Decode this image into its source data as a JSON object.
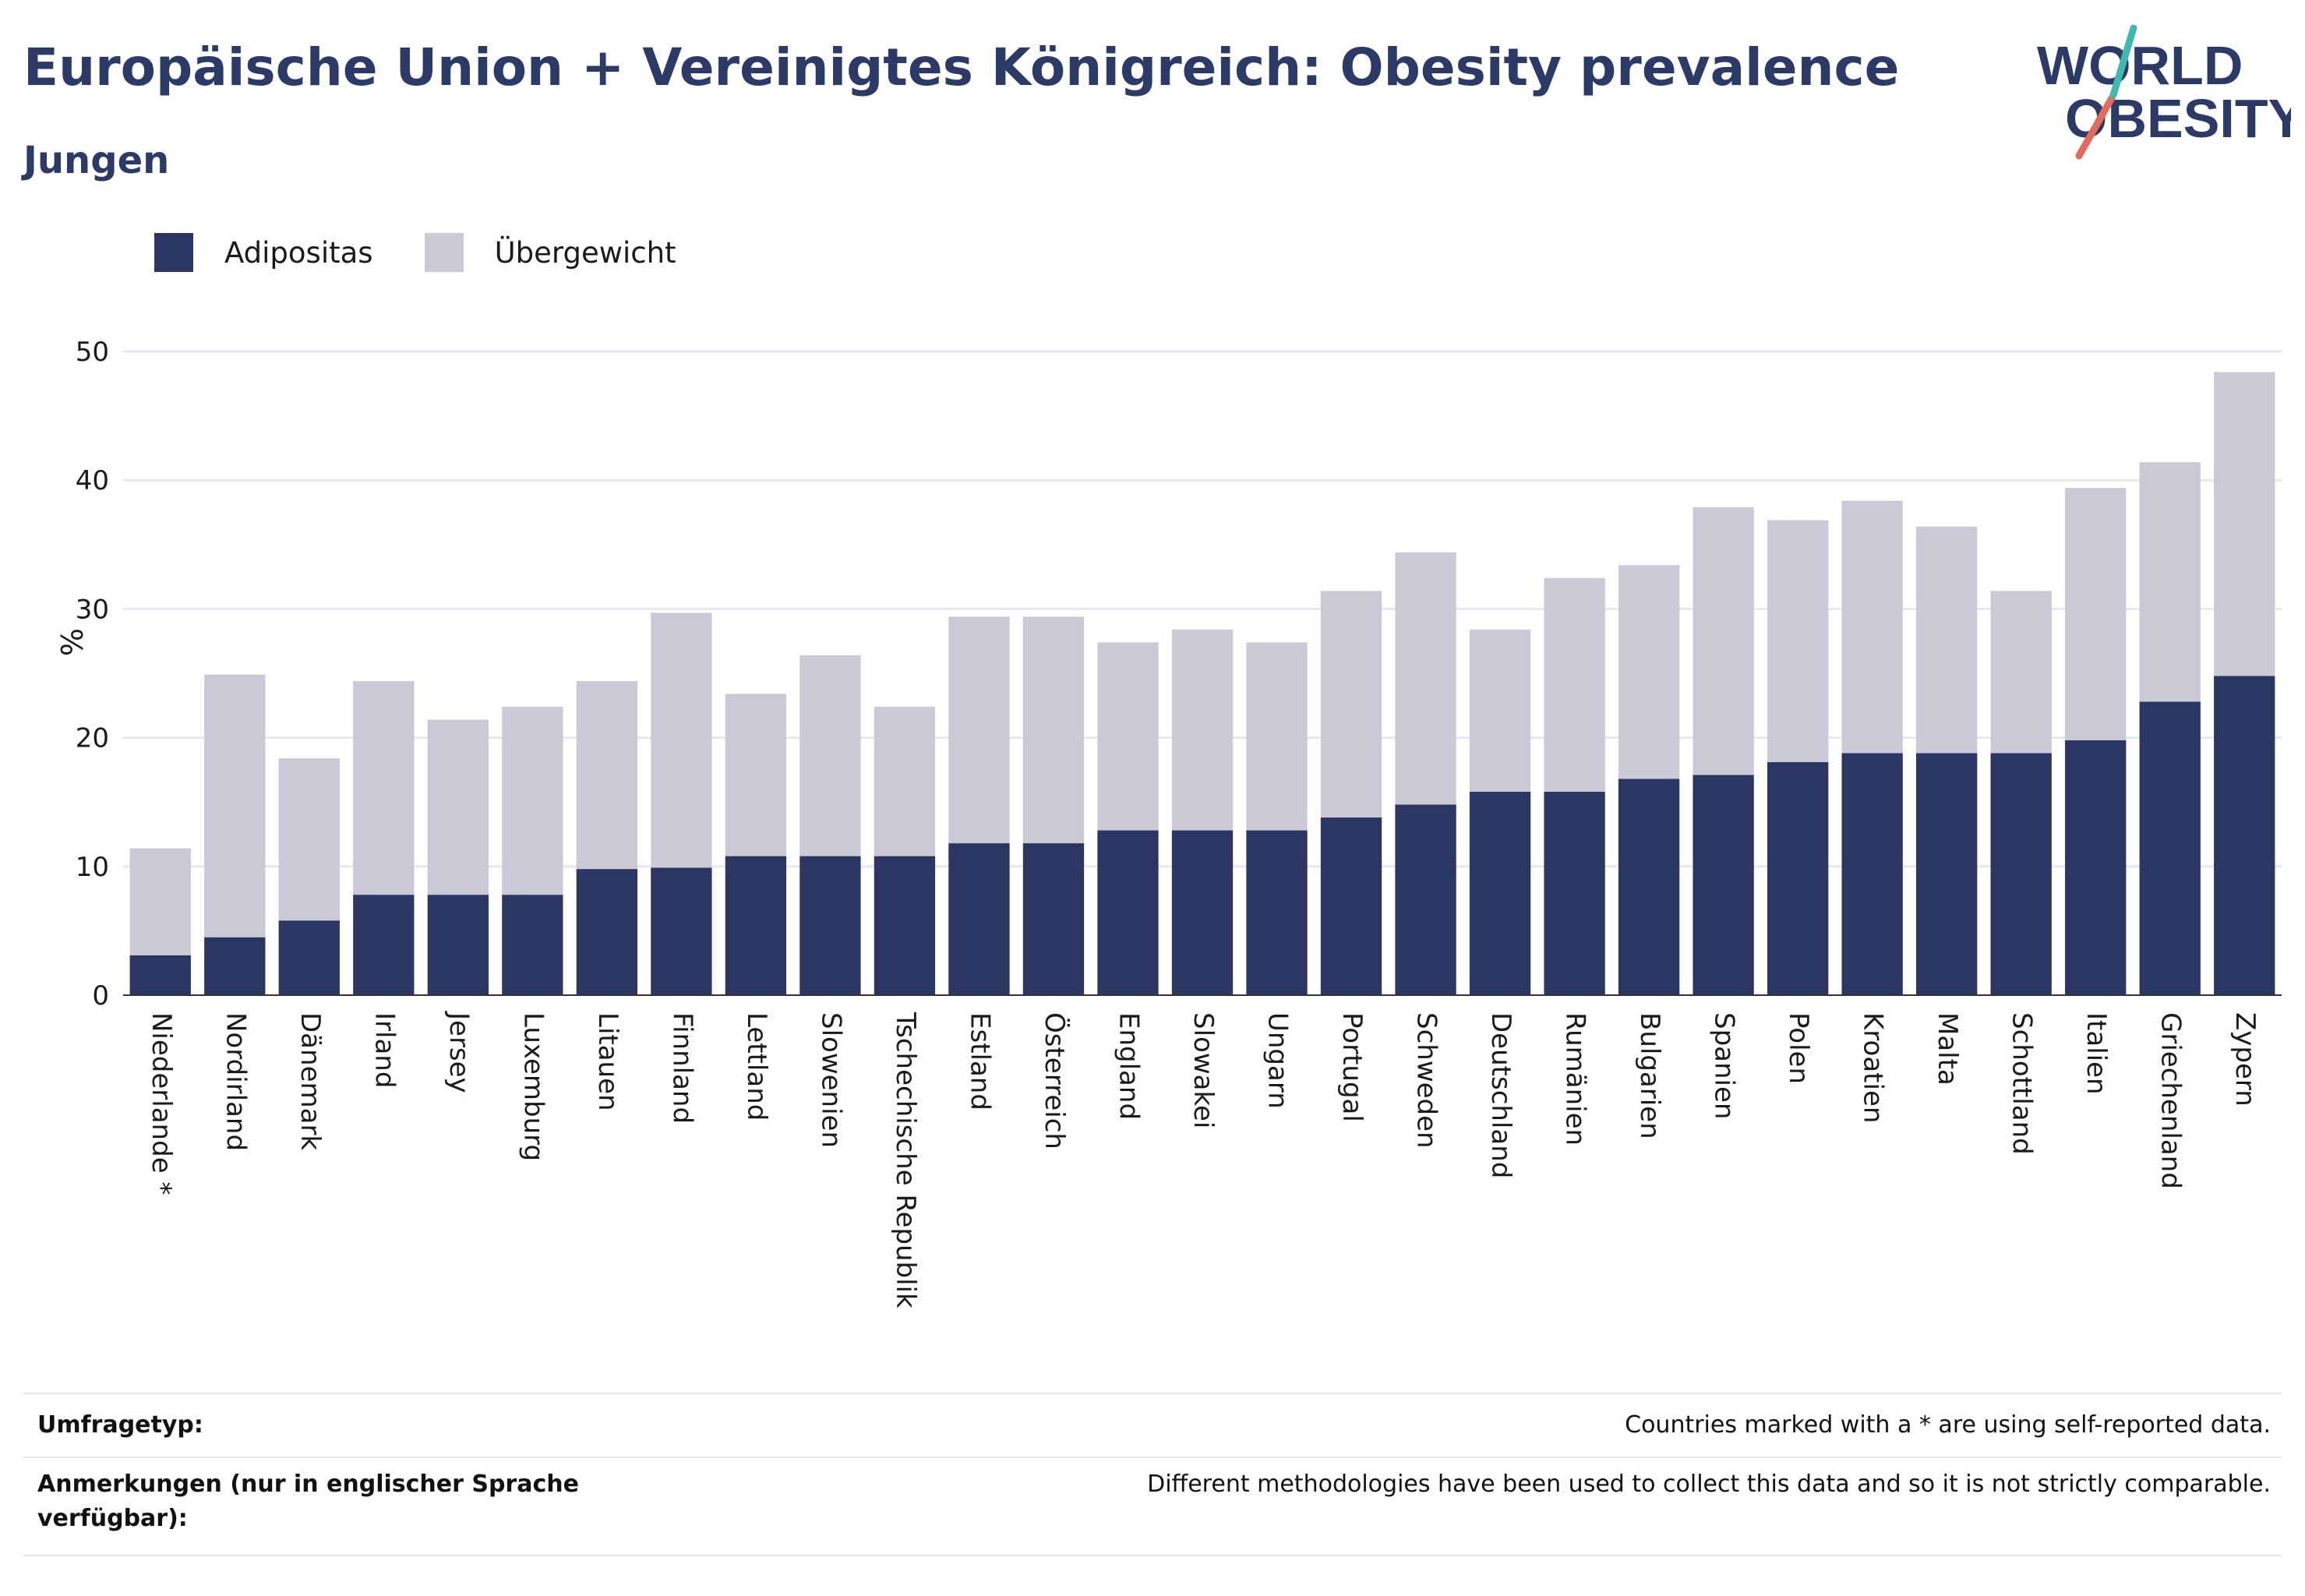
{
  "header": {
    "title": "Europäische Union + Vereinigtes Königreich: Obesity prevalence",
    "subtitle": "Jungen"
  },
  "logo": {
    "line1": "WORLD",
    "line2": "OBESITY"
  },
  "legend": {
    "items": [
      {
        "label": "Adipositas",
        "color": "#2b3663"
      },
      {
        "label": "Übergewicht",
        "color": "#c9cad6"
      }
    ]
  },
  "footer": {
    "rows": [
      {
        "label": "Umfragetyp:",
        "value": "Countries marked with a * are using self-reported data."
      },
      {
        "label": "Anmerkungen (nur in englischer Sprache verfügbar):",
        "value": "Different methodologies have been used to collect this data and so it is not strictly comparable."
      }
    ]
  },
  "chart_data": {
    "type": "bar",
    "stacked": true,
    "ylabel": "%",
    "ylim": [
      0,
      50
    ],
    "yticks": [
      0,
      10,
      20,
      30,
      40,
      50
    ],
    "grid": true,
    "legend_position": "top-left",
    "categories": [
      "Niederlande *",
      "Nordirland",
      "Dänemark",
      "Irland",
      "Jersey",
      "Luxemburg",
      "Litauen",
      "Finnland",
      "Lettland",
      "Slowenien",
      "Tschechische Republik",
      "Estland",
      "Österreich",
      "England",
      "Slowakei",
      "Ungarn",
      "Portugal",
      "Schweden",
      "Deutschland",
      "Rumänien",
      "Bulgarien",
      "Spanien",
      "Polen",
      "Kroatien",
      "Malta",
      "Schottland",
      "Italien",
      "Griechenland",
      "Zypern"
    ],
    "series": [
      {
        "name": "Adipositas",
        "color": "#2b3663",
        "values": [
          3.1,
          4.5,
          5.8,
          7.8,
          7.8,
          7.8,
          9.8,
          9.9,
          10.8,
          10.8,
          10.8,
          11.8,
          11.8,
          12.8,
          12.8,
          12.8,
          13.8,
          14.8,
          15.8,
          15.8,
          16.8,
          17.1,
          18.1,
          18.8,
          18.8,
          18.8,
          19.8,
          22.8,
          24.8
        ]
      },
      {
        "name": "Übergewicht",
        "color": "#c9cad6",
        "values": [
          8.3,
          20.4,
          12.6,
          16.6,
          13.6,
          14.6,
          14.6,
          19.8,
          12.6,
          15.6,
          11.6,
          17.6,
          17.6,
          14.6,
          15.6,
          14.6,
          17.6,
          19.6,
          12.6,
          16.6,
          16.6,
          20.8,
          18.8,
          19.6,
          17.6,
          12.6,
          19.6,
          18.6,
          23.6
        ]
      }
    ]
  }
}
